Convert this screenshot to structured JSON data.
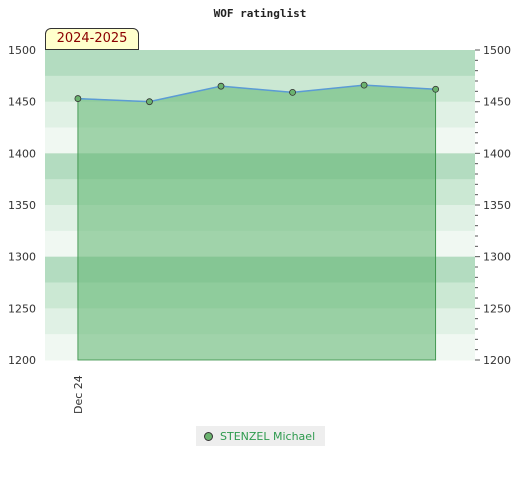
{
  "chart_data": {
    "type": "area",
    "title": "WOF ratinglist",
    "season_label": "2024-2025",
    "x_tick_labels": [
      {
        "at": 0,
        "label": "Dec 24"
      }
    ],
    "x": [
      0,
      1,
      2,
      3,
      4,
      5
    ],
    "xlim": [
      -0.46,
      5.55
    ],
    "ylim": [
      1200,
      1500
    ],
    "yticks": [
      1200,
      1250,
      1300,
      1350,
      1400,
      1450,
      1500
    ],
    "series": [
      {
        "name": "STENZEL Michael",
        "values": [
          1453,
          1450,
          1465,
          1459,
          1466,
          1462
        ]
      }
    ],
    "colors": {
      "line": "#5b9bd5",
      "fill": "#5fb46f",
      "fill_edge": "#2e8b3e",
      "marker": "#6bb36f",
      "band_dark": "#b3dcc0",
      "band_light": "#f0f8f2"
    },
    "grid": true,
    "legend_position": "bottom"
  }
}
